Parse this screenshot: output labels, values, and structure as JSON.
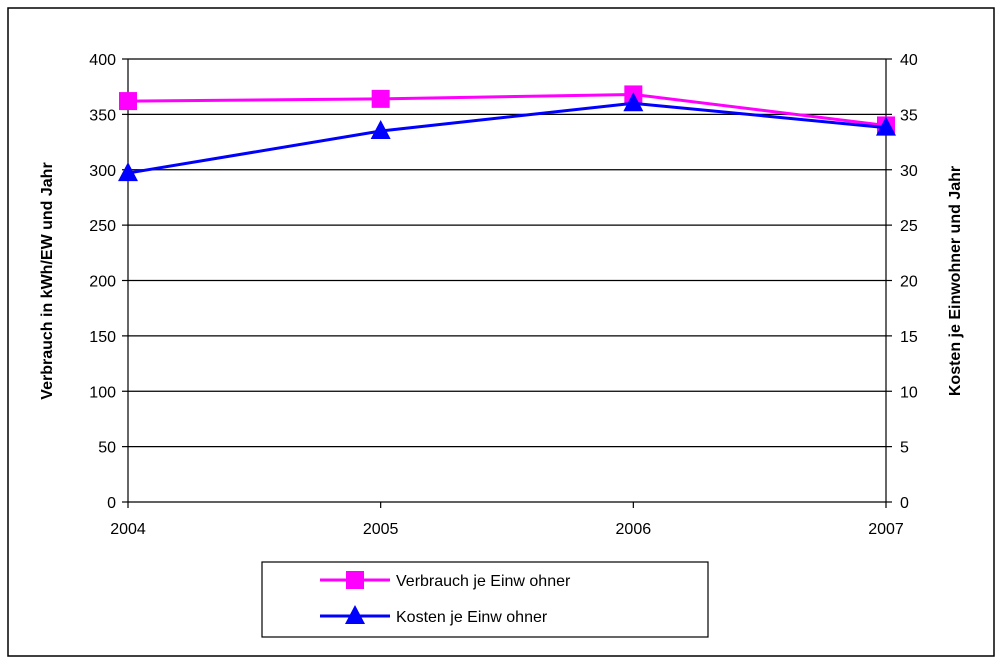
{
  "chart_data": {
    "type": "line",
    "categories": [
      "2004",
      "2005",
      "2006",
      "2007"
    ],
    "series": [
      {
        "name": "Verbrauch je Einw ohner",
        "axis": "left",
        "color": "#ff00ff",
        "marker": "square",
        "values": [
          362,
          364,
          368,
          340
        ]
      },
      {
        "name": "Kosten je Einw ohner",
        "axis": "right",
        "color": "#0000ff",
        "marker": "triangle",
        "values": [
          29.7,
          33.5,
          36.0,
          33.8
        ]
      }
    ],
    "ylabel": "Verbrauch in kWh/EW und Jahr",
    "ylabel_right": "Kosten je Einwohner und Jahr",
    "ylim": [
      0,
      400
    ],
    "ylim_right": [
      0,
      40
    ],
    "yticks": [
      "0",
      "50",
      "100",
      "150",
      "200",
      "250",
      "300",
      "350",
      "400"
    ],
    "yticks_right": [
      "0",
      "5",
      "10",
      "15",
      "20",
      "25",
      "30",
      "35",
      "40"
    ],
    "grid": true,
    "legend_position": "bottom"
  }
}
